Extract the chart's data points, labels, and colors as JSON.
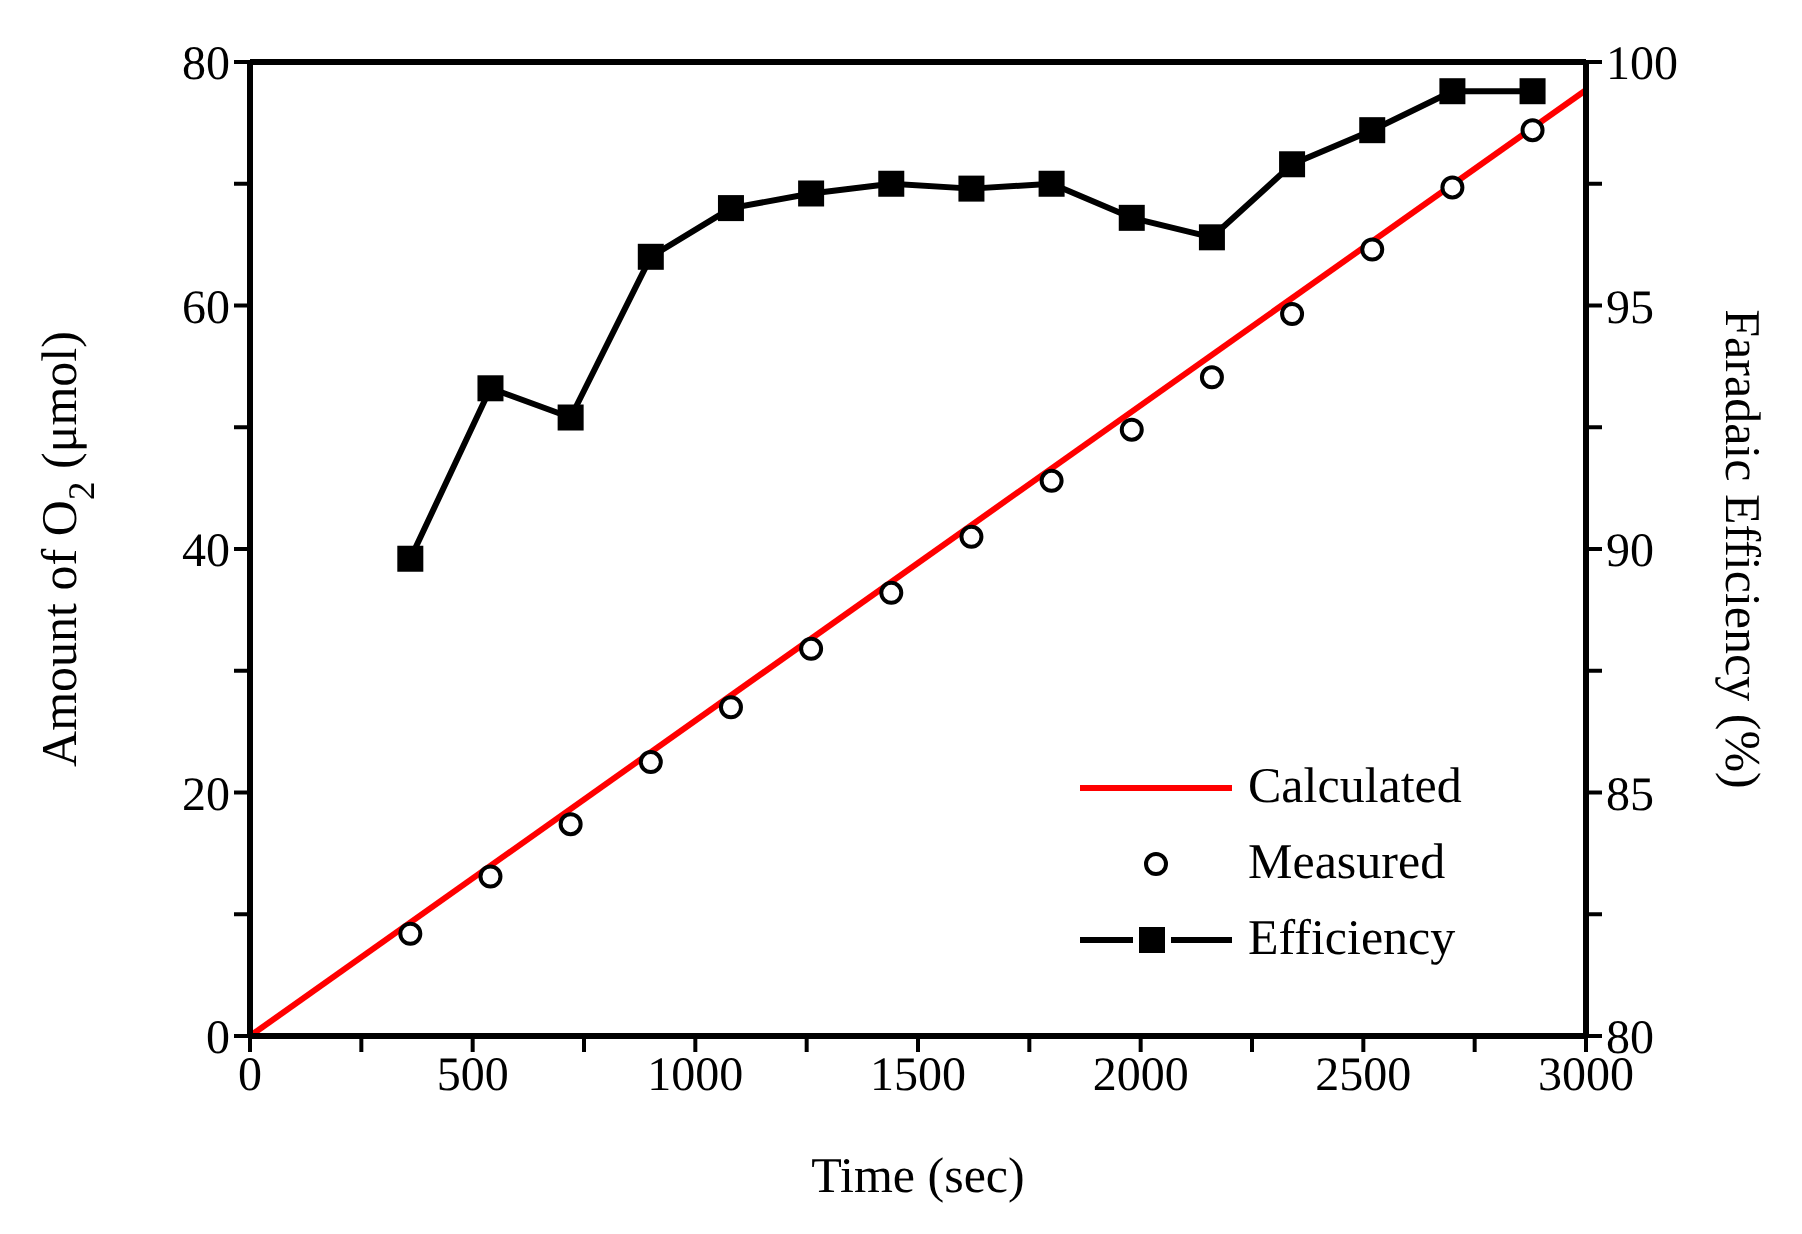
{
  "chart_data": {
    "type": "line",
    "xlabel": "Time (sec)",
    "ylabel": "Amount of O$_{2}$ (μmol)",
    "y2label": "Faradaic Efficiency (%)",
    "xlim": [
      0,
      3000
    ],
    "xticks": [
      0,
      {
        "value": 250,
        "label": null
      },
      500,
      {
        "value": 750,
        "label": null
      },
      1000,
      {
        "value": 1250,
        "label": null
      },
      1500,
      {
        "value": 1750,
        "label": null
      },
      2000,
      {
        "value": 2250,
        "label": null
      },
      2500,
      {
        "value": 2750,
        "label": null
      },
      3000
    ],
    "ylim": [
      0,
      80
    ],
    "yticks": [
      0,
      {
        "value": 10,
        "label": null
      },
      20,
      {
        "value": 30,
        "label": null
      },
      40,
      {
        "value": 50,
        "label": null
      },
      60,
      {
        "value": 70,
        "label": null
      },
      80
    ],
    "y2lim": [
      80,
      100
    ],
    "y2ticks": [
      80,
      {
        "value": 82.5,
        "label": null
      },
      85,
      {
        "value": 87.5,
        "label": null
      },
      90,
      {
        "value": 92.5,
        "label": null
      },
      95,
      {
        "value": 97.5,
        "label": null
      },
      100
    ],
    "grid": false,
    "legend": "bottom right",
    "series": [
      {
        "name": "Calculated",
        "color": "#ff0000",
        "marker": "none",
        "x": [
          0,
          3000
        ],
        "values": [
          0,
          77.7
        ]
      },
      {
        "name": "Measured",
        "type": "scatter",
        "color": "#000000",
        "marker": "circle",
        "x": [
          360,
          540,
          720,
          900,
          1080,
          1260,
          1440,
          1620,
          1800,
          1980,
          2160,
          2340,
          2520,
          2700,
          2880
        ],
        "values": [
          8.4,
          13.1,
          17.4,
          22.5,
          27.0,
          31.8,
          36.4,
          41.0,
          45.6,
          49.8,
          54.1,
          59.3,
          64.6,
          69.7,
          74.4
        ]
      },
      {
        "name": "Efficiency",
        "axis": "y2",
        "color": "#000000",
        "marker": "square",
        "x": [
          360,
          540,
          720,
          900,
          1080,
          1260,
          1440,
          1620,
          1800,
          1980,
          2160,
          2340,
          2520,
          2700,
          2880
        ],
        "values": [
          89.8,
          93.3,
          92.7,
          96.0,
          97.0,
          97.3,
          97.5,
          97.4,
          97.5,
          96.8,
          96.4,
          97.9,
          98.6,
          99.4,
          99.4
        ]
      }
    ]
  }
}
